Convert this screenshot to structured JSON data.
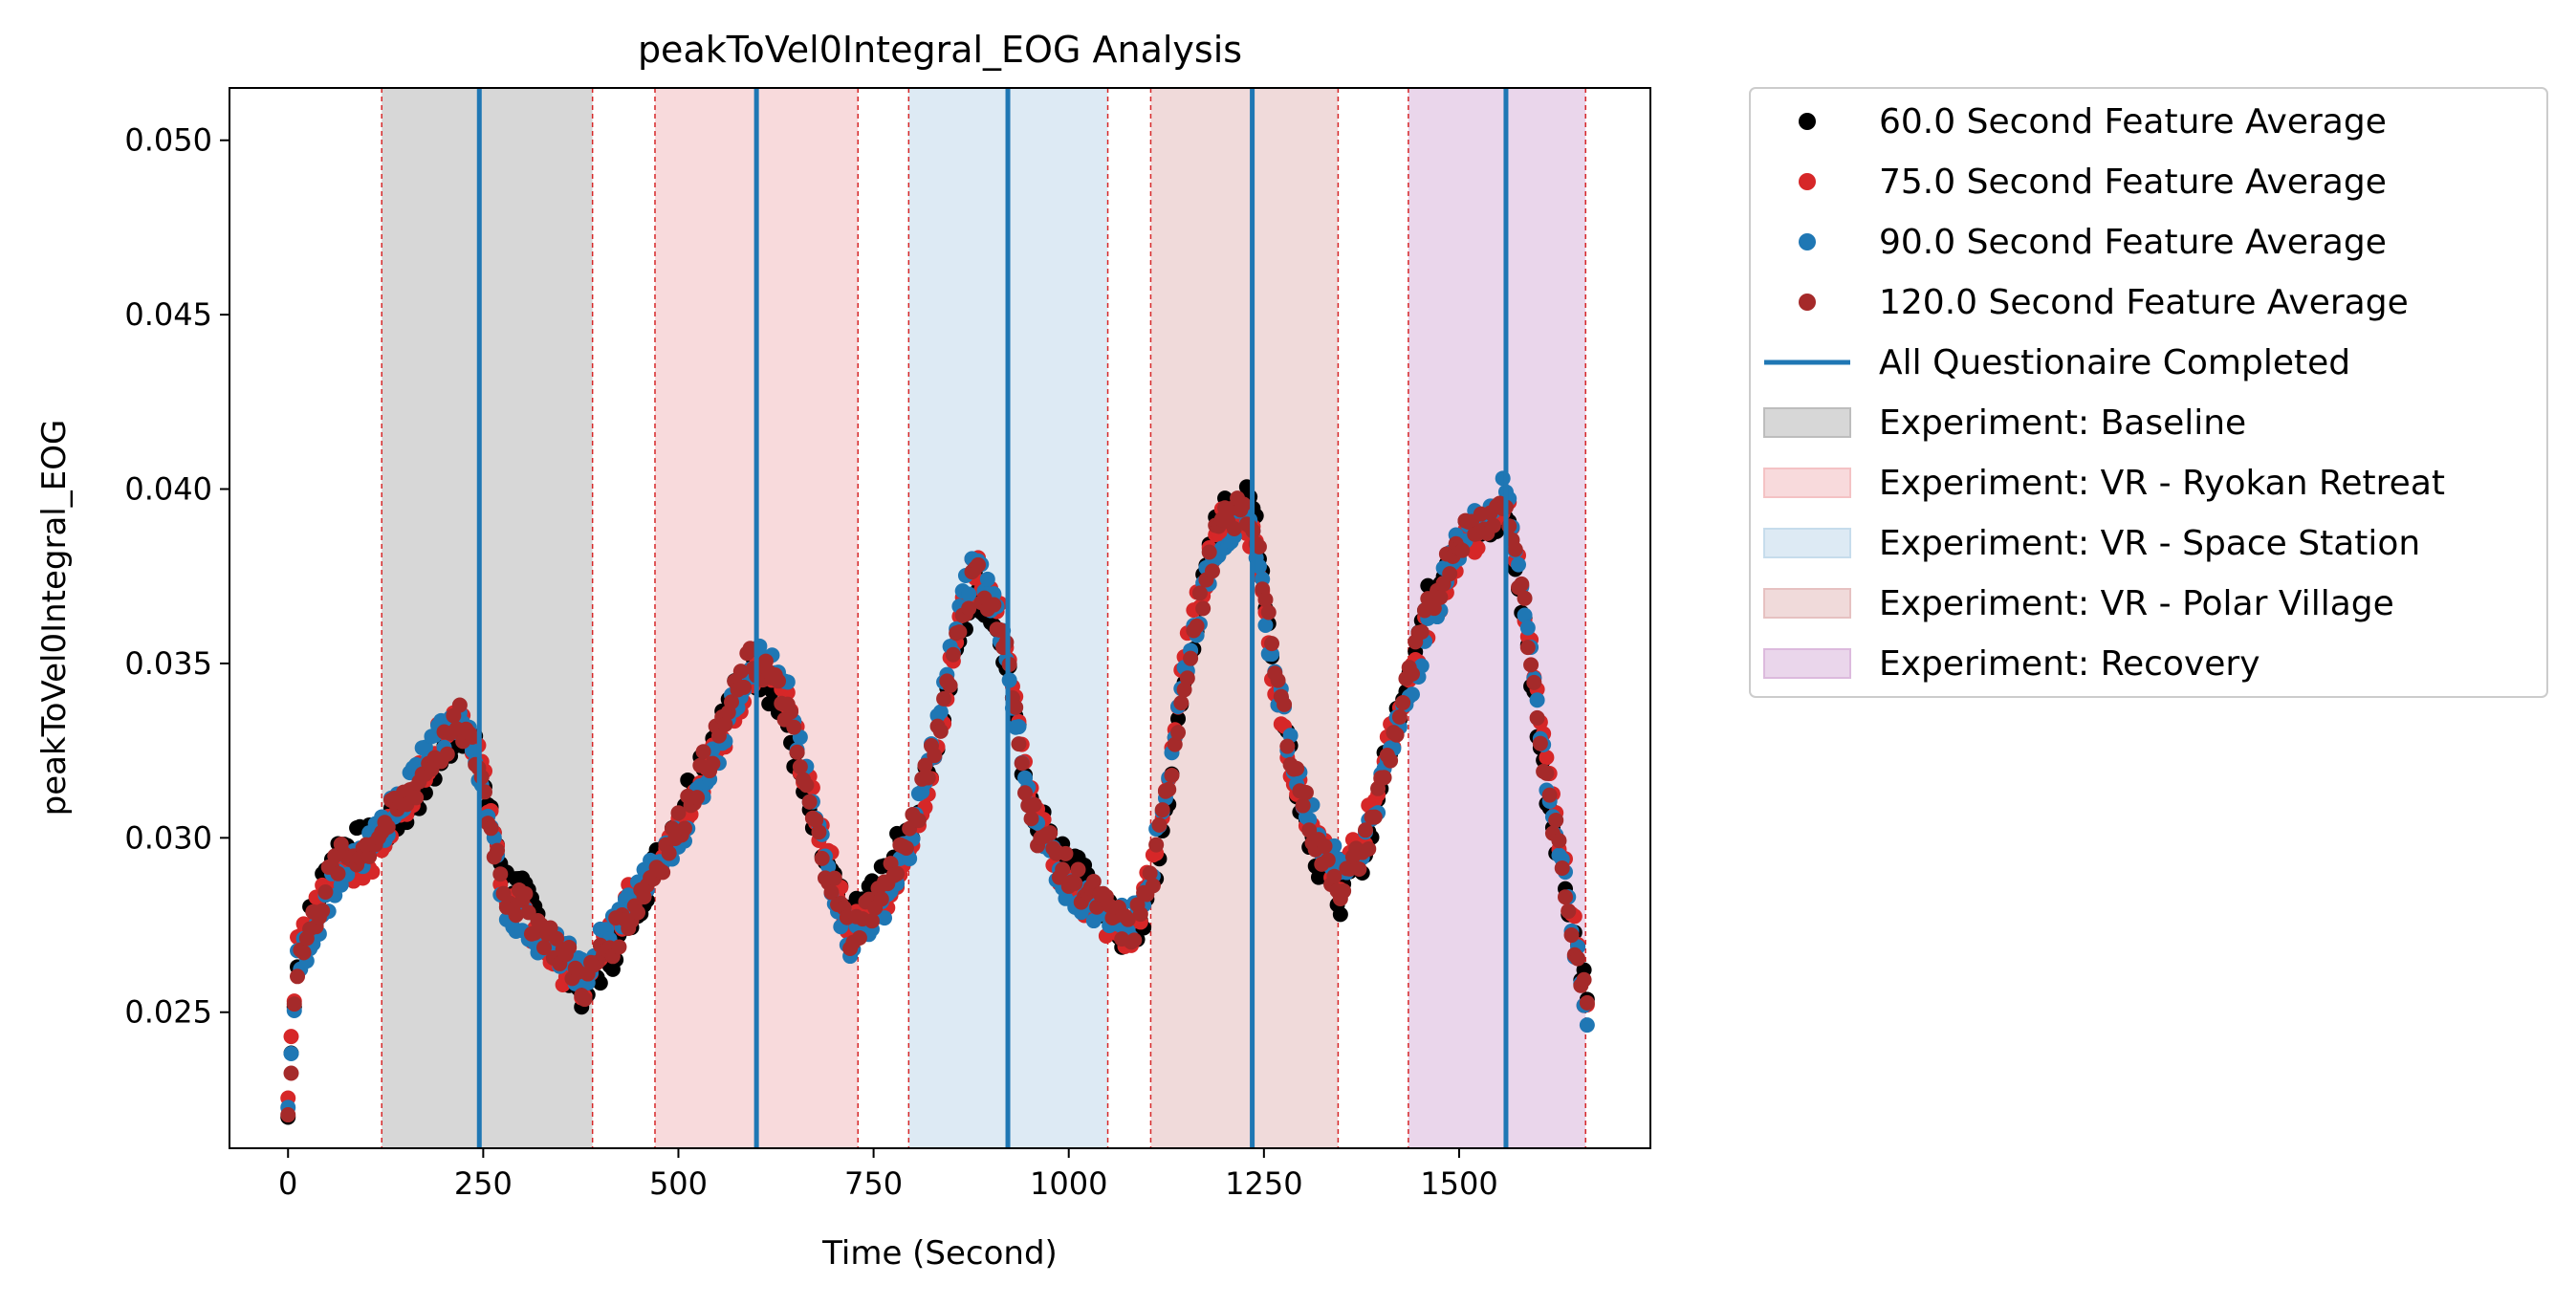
{
  "chart_data": {
    "type": "scatter",
    "title": "peakToVel0Integral_EOG Analysis",
    "xlabel": "Time (Second)",
    "ylabel": "peakToVel0Integral_EOG",
    "xlim": [
      -75,
      1745
    ],
    "ylim": [
      0.0211,
      0.0515
    ],
    "xticks": [
      0,
      250,
      500,
      750,
      1000,
      1250,
      1500
    ],
    "xtick_labels": [
      "0",
      "250",
      "500",
      "750",
      "1000",
      "1250",
      "1500"
    ],
    "yticks": [
      0.025,
      0.03,
      0.035,
      0.04,
      0.045,
      0.05
    ],
    "ytick_labels": [
      "0.025",
      "0.030",
      "0.035",
      "0.040",
      "0.045",
      "0.050"
    ],
    "grid": false,
    "legend_position": "outside-right-top",
    "experiments": [
      {
        "name": "Experiment: Baseline",
        "start": 120,
        "end": 390,
        "color": "#bdbdbd",
        "opacity": 0.6
      },
      {
        "name": "Experiment: VR - Ryokan Retreat",
        "start": 470,
        "end": 730,
        "color": "#f4c2c4",
        "opacity": 0.6
      },
      {
        "name": "Experiment: VR - Space Station",
        "start": 795,
        "end": 1050,
        "color": "#c6dcec",
        "opacity": 0.6
      },
      {
        "name": "Experiment: VR - Polar Village",
        "start": 1105,
        "end": 1345,
        "color": "#e6c1c1",
        "opacity": 0.6
      },
      {
        "name": "Experiment: Recovery",
        "start": 1435,
        "end": 1662,
        "color": "#dcbadd",
        "opacity": 0.6
      }
    ],
    "questionnaire": {
      "name": "All Questionaire Completed",
      "color": "#1f77b4",
      "x": [
        245,
        600,
        922,
        1235,
        1560
      ]
    },
    "boundary_line_color": "#d62728",
    "series": [
      {
        "name": "60.0 Second Feature Average",
        "color": "#000000",
        "offset": 0.0008
      },
      {
        "name": "75.0 Second Feature Average",
        "color": "#d62728",
        "offset": 0.0004
      },
      {
        "name": "90.0 Second Feature Average",
        "color": "#1f77b4",
        "offset": 0.0
      },
      {
        "name": "120.0 Second Feature Average",
        "color": "#a52a2a",
        "offset": -0.0004
      }
    ],
    "curve_x": [
      0,
      10,
      30,
      60,
      100,
      140,
      180,
      220,
      245,
      260,
      280,
      320,
      360,
      380,
      400,
      450,
      500,
      550,
      590,
      610,
      640,
      670,
      700,
      720,
      760,
      800,
      830,
      860,
      880,
      900,
      920,
      940,
      960,
      1000,
      1040,
      1080,
      1110,
      1150,
      1190,
      1220,
      1240,
      1260,
      1290,
      1320,
      1350,
      1380,
      1420,
      1460,
      1500,
      1540,
      1560,
      1580,
      1610,
      1640,
      1666
    ],
    "curve_y": [
      0.022,
      0.0262,
      0.0272,
      0.0288,
      0.0295,
      0.031,
      0.0325,
      0.0335,
      0.032,
      0.03,
      0.028,
      0.0272,
      0.0265,
      0.026,
      0.027,
      0.0285,
      0.03,
      0.0325,
      0.035,
      0.0352,
      0.034,
      0.031,
      0.0285,
      0.027,
      0.028,
      0.03,
      0.033,
      0.0365,
      0.038,
      0.037,
      0.0355,
      0.032,
      0.03,
      0.0285,
      0.028,
      0.0275,
      0.0295,
      0.035,
      0.0385,
      0.039,
      0.0385,
      0.035,
      0.032,
      0.03,
      0.029,
      0.03,
      0.033,
      0.036,
      0.0385,
      0.0395,
      0.04,
      0.0375,
      0.032,
      0.028,
      0.0245
    ]
  }
}
